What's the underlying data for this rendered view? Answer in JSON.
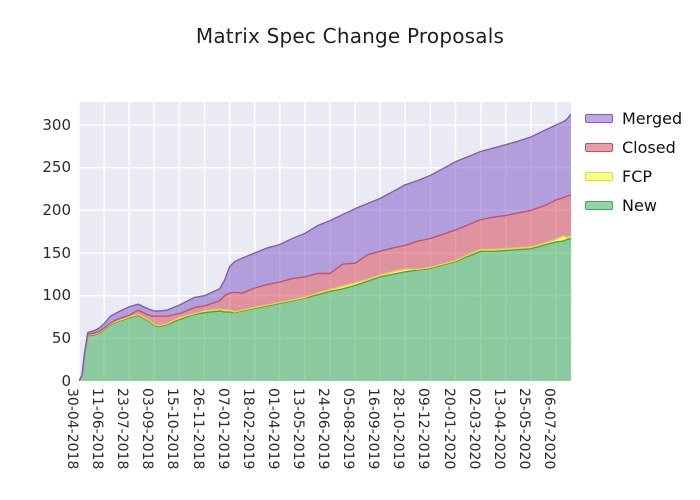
{
  "chart_data": {
    "type": "area",
    "stacked": true,
    "title": "Matrix Spec Change Proposals",
    "xlabel": "",
    "ylabel": "",
    "grid": true,
    "plot_bg": "#e9eaf3",
    "grid_color": "#ffffff",
    "y_ticks": [
      0,
      50,
      100,
      150,
      200,
      250,
      300
    ],
    "ylim": [
      0,
      327
    ],
    "x_tick_labels": [
      "30-04-2018",
      "11-06-2018",
      "23-07-2018",
      "03-09-2018",
      "15-10-2018",
      "26-11-2018",
      "07-01-2019",
      "18-02-2019",
      "01-04-2019",
      "13-05-2019",
      "24-06-2019",
      "05-08-2019",
      "16-09-2019",
      "28-10-2019",
      "09-12-2019",
      "20-01-2020",
      "02-03-2020",
      "13-04-2020",
      "25-05-2020",
      "06-07-2020"
    ],
    "legend": {
      "position": "upper-right-outside",
      "entries": [
        "Merged",
        "Closed",
        "FCP",
        "New"
      ]
    },
    "series": [
      {
        "name": "New",
        "fill": "rgba(46,170,75,0.5)",
        "line": "#3da85a"
      },
      {
        "name": "FCP",
        "fill": "rgba(255,255,40,0.55)",
        "line": "#e3dc32"
      },
      {
        "name": "Closed",
        "fill": "rgba(214,60,76,0.5)",
        "line": "#c9515f"
      },
      {
        "name": "Merged",
        "fill": "rgba(124,82,196,0.5)",
        "line": "#7e5fb5"
      }
    ],
    "samples_columns": [
      "t_ticks",
      "New",
      "FCP",
      "Closed",
      "Merged"
    ],
    "samples": [
      [
        0,
        0,
        0,
        0,
        0
      ],
      [
        0.12,
        6,
        0,
        0,
        1
      ],
      [
        0.22,
        30,
        1,
        0,
        2
      ],
      [
        0.35,
        53,
        1,
        1,
        2
      ],
      [
        0.6,
        54,
        1,
        1,
        3
      ],
      [
        0.8,
        56,
        1,
        1,
        4
      ],
      [
        1,
        60,
        1,
        1,
        5
      ],
      [
        1.25,
        66,
        1,
        1,
        8
      ],
      [
        1.5,
        69,
        1,
        2,
        8
      ],
      [
        2,
        74,
        1,
        2,
        10
      ],
      [
        2.35,
        77,
        1,
        5,
        7
      ],
      [
        2.8,
        70,
        1,
        6,
        7
      ],
      [
        3,
        65,
        1,
        10,
        6
      ],
      [
        3.2,
        64,
        1,
        11,
        6
      ],
      [
        3.5,
        66,
        1,
        9,
        7
      ],
      [
        4,
        72,
        2,
        5,
        10
      ],
      [
        4.6,
        78,
        1,
        7,
        12
      ],
      [
        5,
        80,
        2,
        6,
        12
      ],
      [
        5.6,
        82,
        2,
        10,
        14
      ],
      [
        5.8,
        81,
        2,
        17,
        18
      ],
      [
        6,
        81,
        2,
        20,
        31
      ],
      [
        6.2,
        80,
        1,
        23,
        36
      ],
      [
        6.5,
        82,
        1,
        20,
        41
      ],
      [
        7,
        85,
        1,
        23,
        41
      ],
      [
        7.5,
        88,
        1,
        24,
        43
      ],
      [
        8,
        91,
        1,
        24,
        44
      ],
      [
        8.5,
        94,
        1,
        25,
        47
      ],
      [
        9,
        97,
        1,
        24,
        51
      ],
      [
        9.5,
        101,
        2,
        23,
        56
      ],
      [
        10,
        105,
        2,
        19,
        62
      ],
      [
        10.5,
        108,
        3,
        26,
        58
      ],
      [
        11,
        112,
        3,
        23,
        64
      ],
      [
        11.5,
        117,
        2,
        29,
        60
      ],
      [
        12,
        122,
        2,
        28,
        62
      ],
      [
        12.5,
        125,
        3,
        28,
        66
      ],
      [
        13,
        128,
        3,
        28,
        71
      ],
      [
        13.5,
        130,
        1,
        33,
        71
      ],
      [
        14,
        132,
        1,
        34,
        74
      ],
      [
        14.5,
        136,
        1,
        35,
        77
      ],
      [
        15,
        140,
        1,
        36,
        80
      ],
      [
        15.5,
        146,
        2,
        35,
        80
      ],
      [
        16,
        152,
        2,
        35,
        80
      ],
      [
        16.5,
        152,
        2,
        38,
        81
      ],
      [
        17,
        153,
        2,
        39,
        83
      ],
      [
        17.5,
        154,
        2,
        41,
        84
      ],
      [
        18,
        155,
        2,
        43,
        86
      ],
      [
        18.5,
        159,
        2,
        44,
        88
      ],
      [
        19,
        163,
        3,
        46,
        88
      ],
      [
        19.3,
        164,
        6,
        45,
        89
      ],
      [
        19.45,
        166,
        2,
        49,
        90
      ],
      [
        19.6,
        167,
        3,
        48,
        95
      ]
    ]
  }
}
